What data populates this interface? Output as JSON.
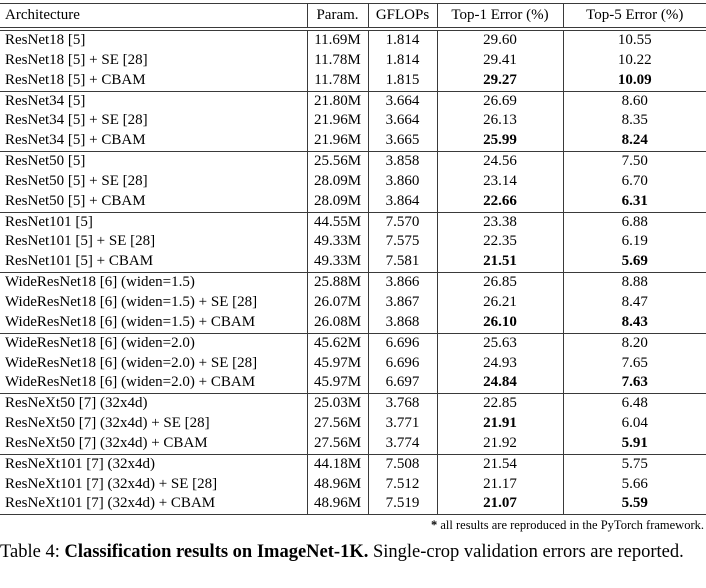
{
  "table": {
    "headers": [
      "Architecture",
      "Param.",
      "GFLOPs",
      "Top-1 Error (%)",
      "Top-5 Error (%)"
    ],
    "rows": [
      {
        "cells": [
          "ResNet18 [5]",
          "11.69M",
          "1.814",
          "29.60",
          "10.55"
        ],
        "bold": [
          0,
          0,
          0,
          0,
          0
        ],
        "sep": false
      },
      {
        "cells": [
          "ResNet18 [5] + SE [28]",
          "11.78M",
          "1.814",
          "29.41",
          "10.22"
        ],
        "bold": [
          0,
          0,
          0,
          0,
          0
        ],
        "sep": false
      },
      {
        "cells": [
          "ResNet18 [5] + CBAM",
          "11.78M",
          "1.815",
          "29.27",
          "10.09"
        ],
        "bold": [
          0,
          0,
          0,
          1,
          1
        ],
        "sep": false
      },
      {
        "cells": [
          "ResNet34 [5]",
          "21.80M",
          "3.664",
          "26.69",
          "8.60"
        ],
        "bold": [
          0,
          0,
          0,
          0,
          0
        ],
        "sep": true
      },
      {
        "cells": [
          "ResNet34 [5] + SE [28]",
          "21.96M",
          "3.664",
          "26.13",
          "8.35"
        ],
        "bold": [
          0,
          0,
          0,
          0,
          0
        ],
        "sep": false
      },
      {
        "cells": [
          "ResNet34 [5] + CBAM",
          "21.96M",
          "3.665",
          "25.99",
          "8.24"
        ],
        "bold": [
          0,
          0,
          0,
          1,
          1
        ],
        "sep": false
      },
      {
        "cells": [
          "ResNet50 [5]",
          "25.56M",
          "3.858",
          "24.56",
          "7.50"
        ],
        "bold": [
          0,
          0,
          0,
          0,
          0
        ],
        "sep": true
      },
      {
        "cells": [
          "ResNet50 [5] + SE [28]",
          "28.09M",
          "3.860",
          "23.14",
          "6.70"
        ],
        "bold": [
          0,
          0,
          0,
          0,
          0
        ],
        "sep": false
      },
      {
        "cells": [
          "ResNet50 [5] + CBAM",
          "28.09M",
          "3.864",
          "22.66",
          "6.31"
        ],
        "bold": [
          0,
          0,
          0,
          1,
          1
        ],
        "sep": false
      },
      {
        "cells": [
          "ResNet101 [5]",
          "44.55M",
          "7.570",
          "23.38",
          "6.88"
        ],
        "bold": [
          0,
          0,
          0,
          0,
          0
        ],
        "sep": true
      },
      {
        "cells": [
          "ResNet101 [5] + SE [28]",
          "49.33M",
          "7.575",
          "22.35",
          "6.19"
        ],
        "bold": [
          0,
          0,
          0,
          0,
          0
        ],
        "sep": false
      },
      {
        "cells": [
          "ResNet101 [5] + CBAM",
          "49.33M",
          "7.581",
          "21.51",
          "5.69"
        ],
        "bold": [
          0,
          0,
          0,
          1,
          1
        ],
        "sep": false
      },
      {
        "cells": [
          "WideResNet18 [6] (widen=1.5)",
          "25.88M",
          "3.866",
          "26.85",
          "8.88"
        ],
        "bold": [
          0,
          0,
          0,
          0,
          0
        ],
        "sep": true
      },
      {
        "cells": [
          "WideResNet18 [6] (widen=1.5) + SE [28]",
          "26.07M",
          "3.867",
          "26.21",
          "8.47"
        ],
        "bold": [
          0,
          0,
          0,
          0,
          0
        ],
        "sep": false
      },
      {
        "cells": [
          "WideResNet18 [6] (widen=1.5) + CBAM",
          "26.08M",
          "3.868",
          "26.10",
          "8.43"
        ],
        "bold": [
          0,
          0,
          0,
          1,
          1
        ],
        "sep": false
      },
      {
        "cells": [
          "WideResNet18 [6] (widen=2.0)",
          "45.62M",
          "6.696",
          "25.63",
          "8.20"
        ],
        "bold": [
          0,
          0,
          0,
          0,
          0
        ],
        "sep": true
      },
      {
        "cells": [
          "WideResNet18 [6] (widen=2.0) + SE [28]",
          "45.97M",
          "6.696",
          "24.93",
          "7.65"
        ],
        "bold": [
          0,
          0,
          0,
          0,
          0
        ],
        "sep": false
      },
      {
        "cells": [
          "WideResNet18 [6] (widen=2.0) + CBAM",
          "45.97M",
          "6.697",
          "24.84",
          "7.63"
        ],
        "bold": [
          0,
          0,
          0,
          1,
          1
        ],
        "sep": false
      },
      {
        "cells": [
          "ResNeXt50 [7] (32x4d)",
          "25.03M",
          "3.768",
          "22.85",
          "6.48"
        ],
        "bold": [
          0,
          0,
          0,
          0,
          0
        ],
        "sep": true
      },
      {
        "cells": [
          "ResNeXt50 [7] (32x4d) + SE [28]",
          "27.56M",
          "3.771",
          "21.91",
          "6.04"
        ],
        "bold": [
          0,
          0,
          0,
          1,
          0
        ],
        "sep": false
      },
      {
        "cells": [
          "ResNeXt50 [7] (32x4d) + CBAM",
          "27.56M",
          "3.774",
          "21.92",
          "5.91"
        ],
        "bold": [
          0,
          0,
          0,
          0,
          1
        ],
        "sep": false
      },
      {
        "cells": [
          "ResNeXt101 [7] (32x4d)",
          "44.18M",
          "7.508",
          "21.54",
          "5.75"
        ],
        "bold": [
          0,
          0,
          0,
          0,
          0
        ],
        "sep": true
      },
      {
        "cells": [
          "ResNeXt101 [7] (32x4d) + SE [28]",
          "48.96M",
          "7.512",
          "21.17",
          "5.66"
        ],
        "bold": [
          0,
          0,
          0,
          0,
          0
        ],
        "sep": false
      },
      {
        "cells": [
          "ResNeXt101 [7] (32x4d) + CBAM",
          "48.96M",
          "7.519",
          "21.07",
          "5.59"
        ],
        "bold": [
          0,
          0,
          0,
          1,
          1
        ],
        "sep": false
      }
    ]
  },
  "footnote": {
    "star": "*",
    "text": " all results are reproduced in the PyTorch framework."
  },
  "caption": {
    "prefix": "Table 4: ",
    "bold": "Classification results on ImageNet-1K.",
    "rest": " Single-crop validation errors are reported."
  }
}
